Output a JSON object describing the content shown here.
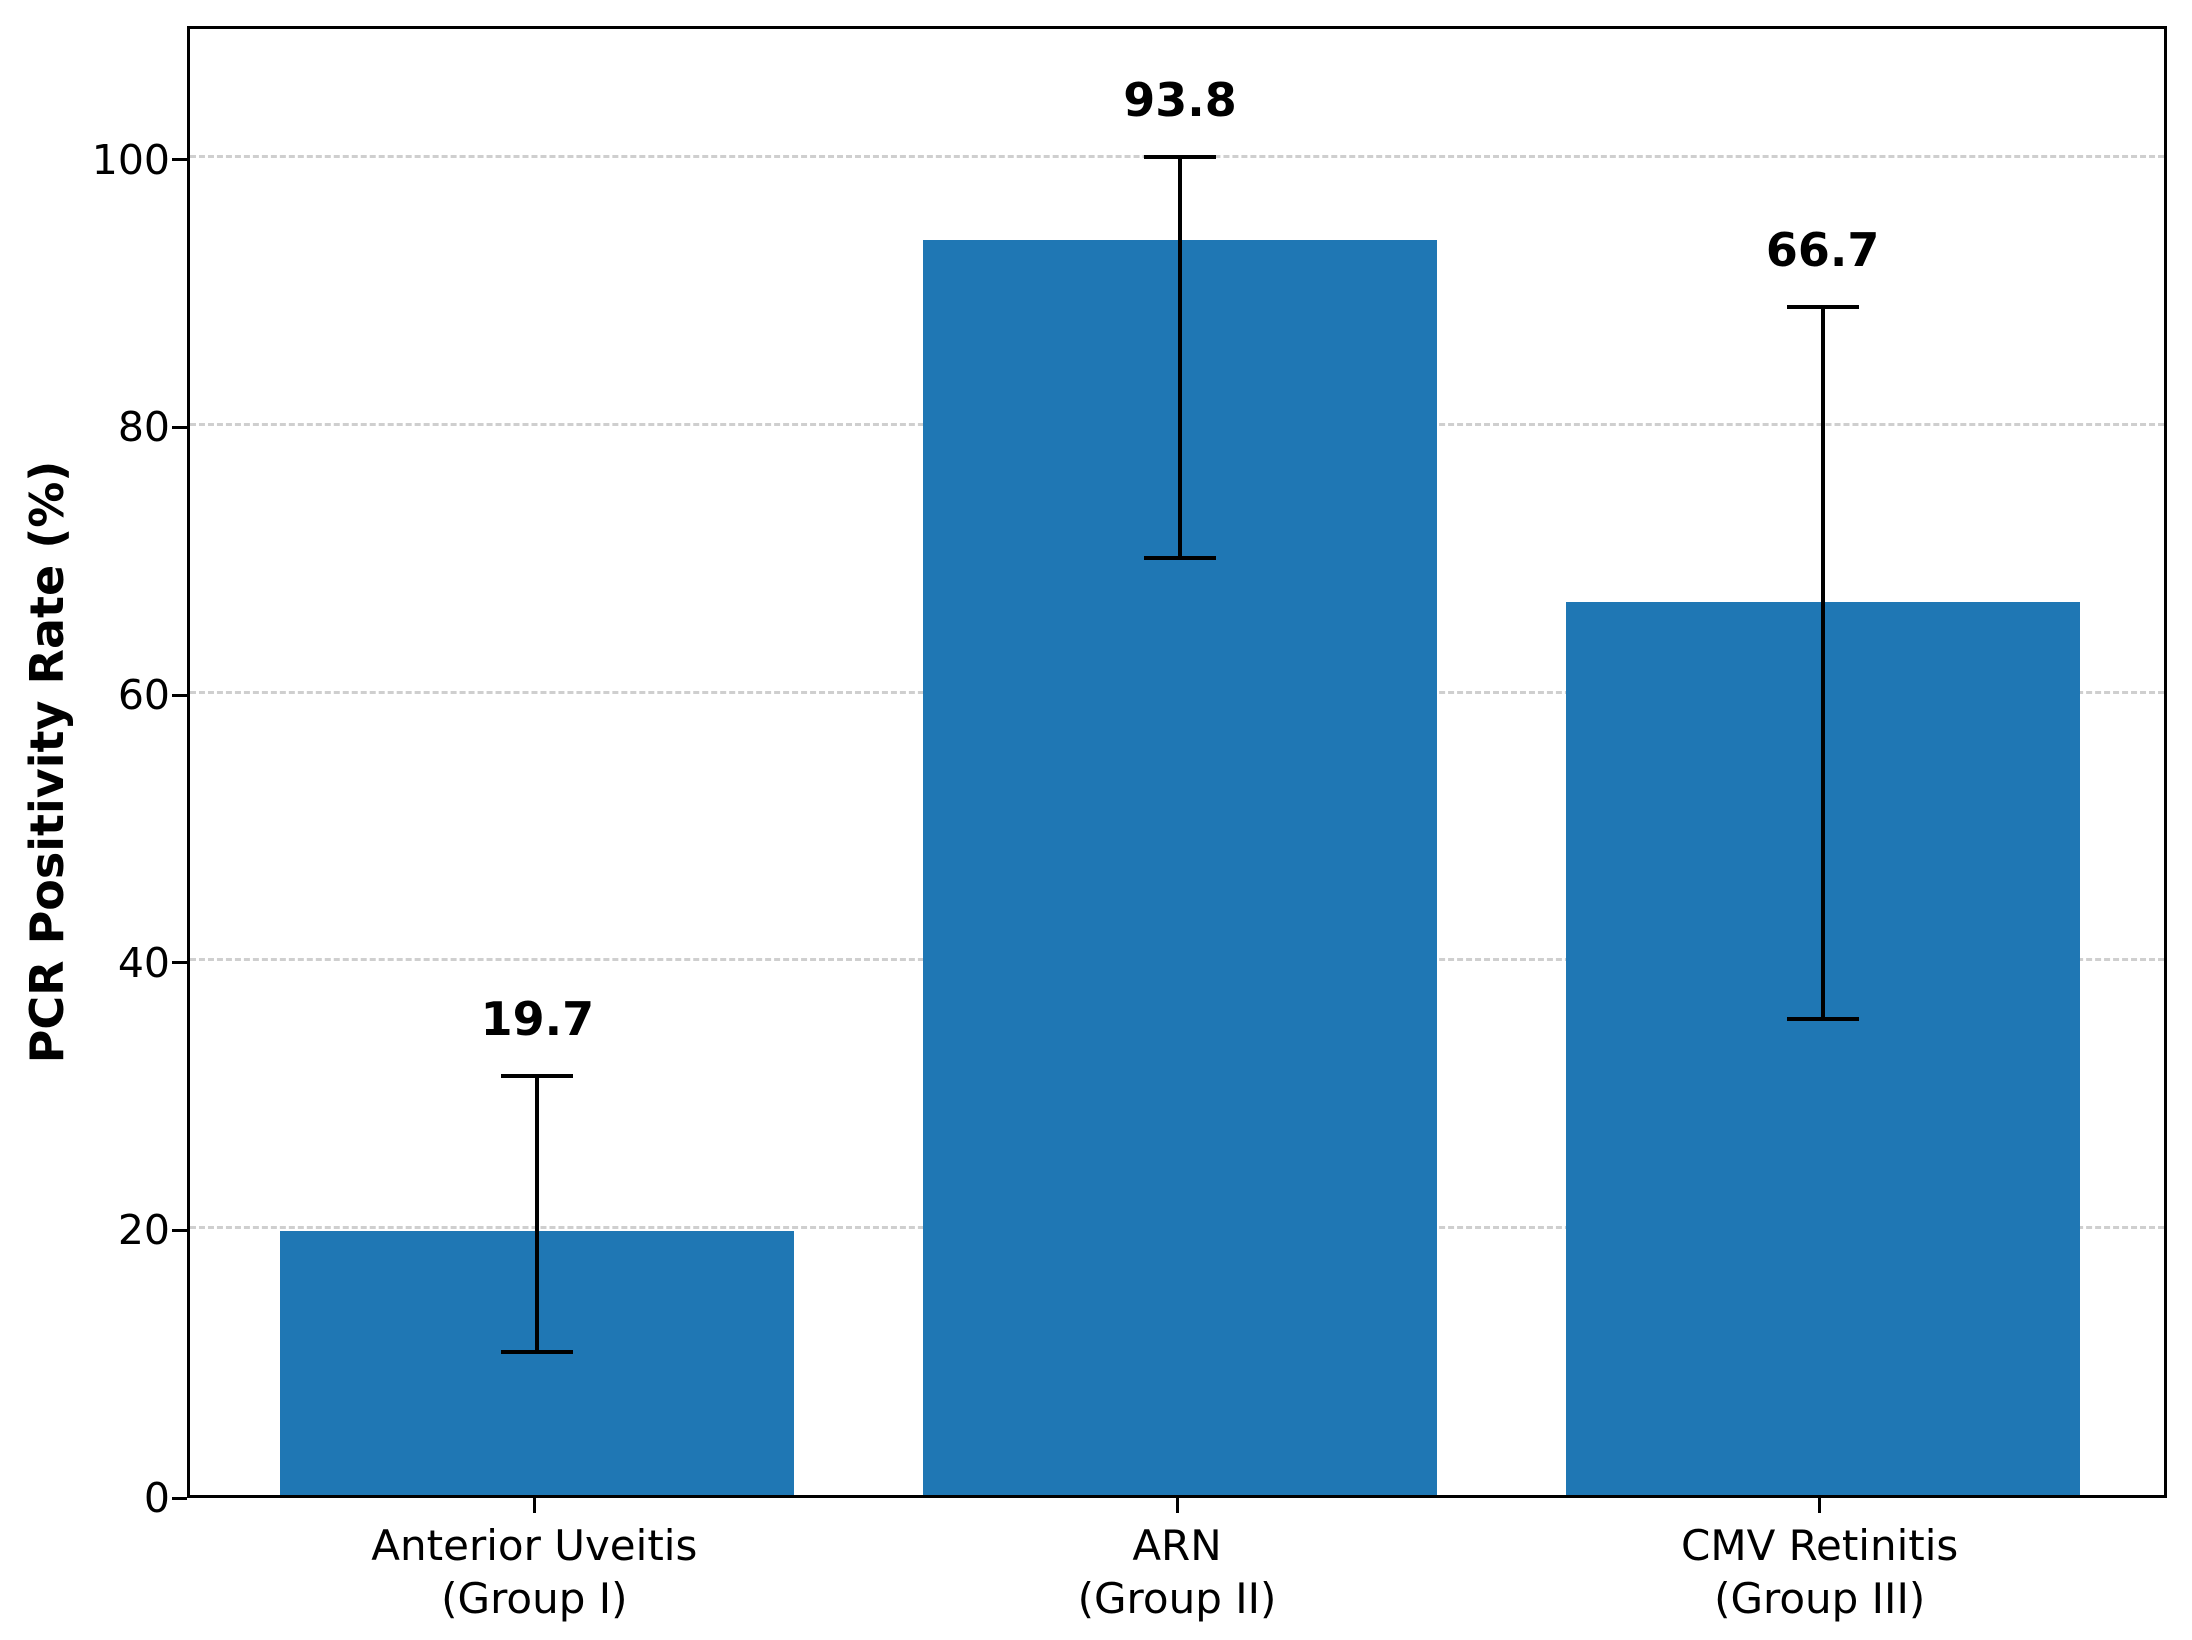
{
  "chart_data": {
    "type": "bar",
    "title": "",
    "xlabel": "",
    "ylabel": "PCR Positivity Rate (%)",
    "categories": [
      [
        "Anterior Uveitis",
        "(Group I)"
      ],
      [
        "ARN",
        "(Group II)"
      ],
      [
        "CMV Retinitis",
        "(Group III)"
      ]
    ],
    "values": [
      19.7,
      93.8,
      66.7
    ],
    "value_labels": [
      "19.7",
      "93.8",
      "66.7"
    ],
    "error_bars": [
      {
        "low": 10.7,
        "high": 31.3
      },
      {
        "low": 70.0,
        "high": 100.0
      },
      {
        "low": 35.6,
        "high": 88.8
      }
    ],
    "yticks": [
      0,
      20,
      40,
      60,
      80,
      100
    ],
    "ylim": [
      0,
      110
    ],
    "grid": true,
    "grid_axis": "y",
    "grid_style": "dashed",
    "legend": "none",
    "bar_color": "#1f77b4",
    "error_bar_color": "#000000",
    "gridline_color": "#cfcfcf",
    "axis_color": "#000000",
    "text_color": "#000000",
    "background_color": "#ffffff"
  }
}
